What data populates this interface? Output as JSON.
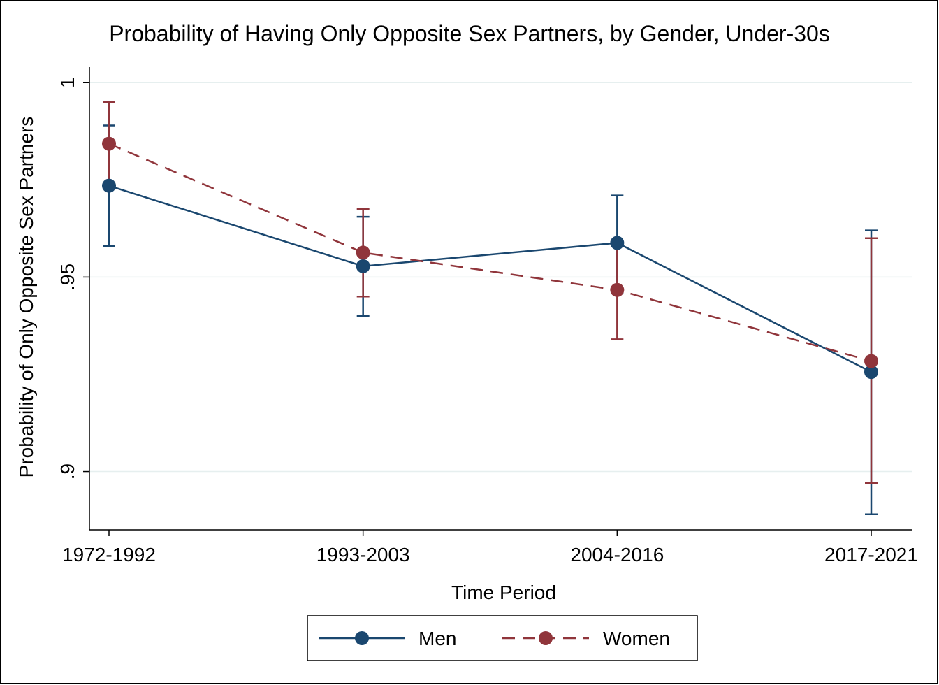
{
  "chart_data": {
    "type": "line",
    "title": "Probability of Having Only Opposite Sex Partners, by Gender, Under-30s",
    "xlabel": "Time Period",
    "ylabel": "Probability of Only Opposite Sex Partners",
    "categories": [
      "1972-1992",
      "1993-2003",
      "2004-2016",
      "2017-2021"
    ],
    "yticks": [
      {
        "value": 1,
        "label": "1"
      },
      {
        "value": 0.95,
        "label": ".95"
      },
      {
        "value": 0.9,
        "label": ".9"
      }
    ],
    "ylim": [
      0.885,
      1.004
    ],
    "grid": true,
    "legend_position": "bottom",
    "series": [
      {
        "name": "Men",
        "color": "#1a476f",
        "line_style": "solid",
        "values": [
          0.9735,
          0.9528,
          0.9588,
          0.9256
        ],
        "ci_low": [
          0.958,
          0.94,
          0.946,
          0.889
        ],
        "ci_high": [
          0.989,
          0.9655,
          0.971,
          0.962
        ]
      },
      {
        "name": "Women",
        "color": "#90353b",
        "line_style": "dashed",
        "values": [
          0.9843,
          0.9563,
          0.9467,
          0.9284
        ],
        "ci_low": [
          0.9735,
          0.945,
          0.934,
          0.897
        ],
        "ci_high": [
          0.995,
          0.9675,
          0.959,
          0.96
        ]
      }
    ]
  }
}
